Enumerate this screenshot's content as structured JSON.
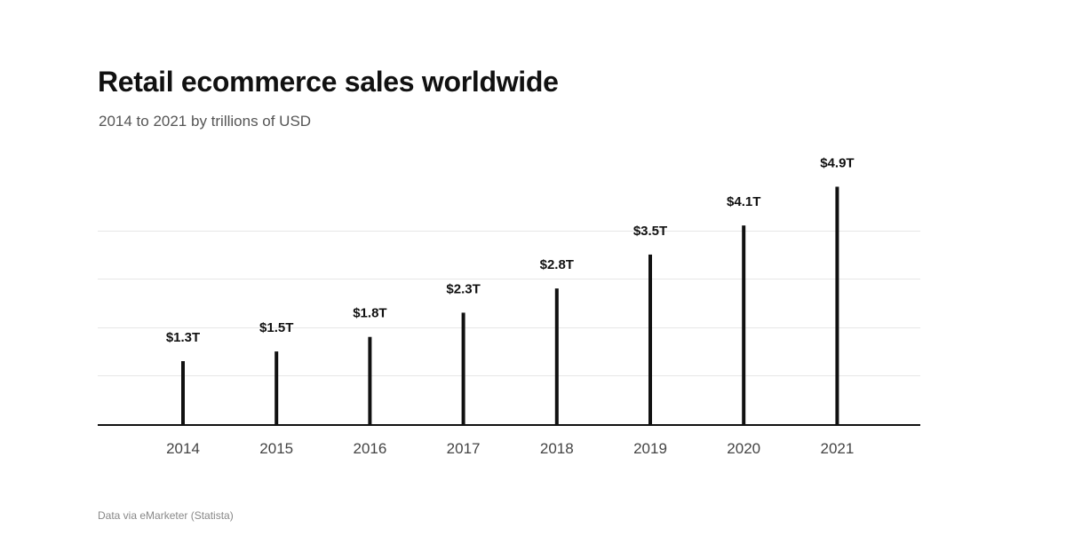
{
  "chart_data": {
    "type": "bar",
    "title": "Retail ecommerce sales worldwide",
    "subtitle": "2014 to 2021 by trillions of USD",
    "categories": [
      "2014",
      "2015",
      "2016",
      "2017",
      "2018",
      "2019",
      "2020",
      "2021"
    ],
    "values": [
      1.3,
      1.5,
      1.8,
      2.3,
      2.8,
      3.5,
      4.1,
      4.9
    ],
    "data_labels": [
      "$1.3T",
      "$1.5T",
      "$1.8T",
      "$2.3T",
      "$2.8T",
      "$3.5T",
      "$4.1T",
      "$4.9T"
    ],
    "xlabel": "",
    "ylabel": "",
    "ylim": [
      0,
      5
    ],
    "grid": true,
    "legend": "none",
    "colors": {
      "bar": "#111111",
      "grid": "#e6e6e6",
      "axis": "#111111"
    }
  },
  "source": "Data via eMarketer (Statista)"
}
